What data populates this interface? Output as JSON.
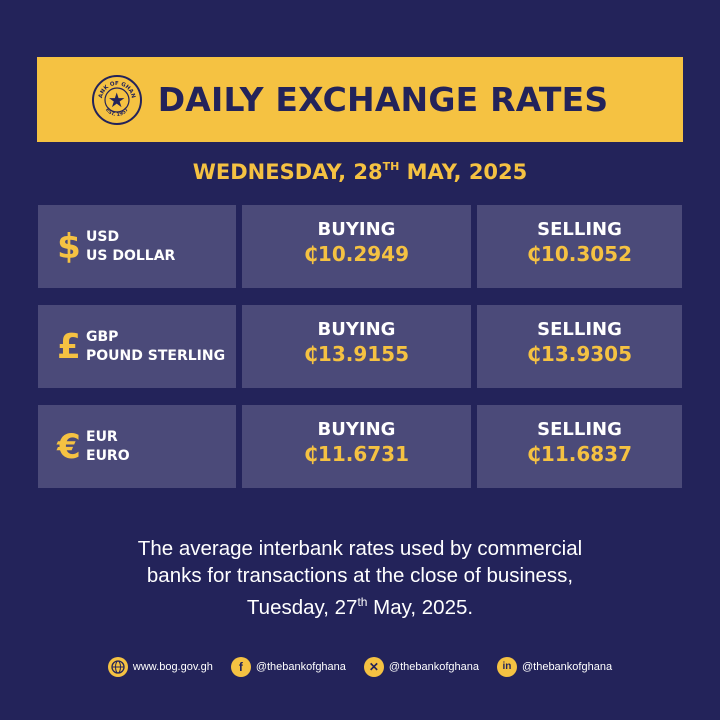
{
  "banner": {
    "title": "DAILY EXCHANGE RATES",
    "seal_text_top": "BANK OF GHANA",
    "seal_text_bottom": "EST. 1957"
  },
  "date": {
    "prefix": "WEDNESDAY, 28",
    "sup": "TH",
    "suffix": " MAY, 2025"
  },
  "rates": [
    {
      "symbol": "$",
      "code": "USD",
      "name": "US DOLLAR",
      "buying_label": "BUYING",
      "buying": "₵10.2949",
      "selling_label": "SELLING",
      "selling": "₵10.3052"
    },
    {
      "symbol": "£",
      "code": "GBP",
      "name": "POUND STERLING",
      "buying_label": "BUYING",
      "buying": "₵13.9155",
      "selling_label": "SELLING",
      "selling": "₵13.9305"
    },
    {
      "symbol": "€",
      "code": "EUR",
      "name": "EURO",
      "buying_label": "BUYING",
      "buying": "₵11.6731",
      "selling_label": "SELLING",
      "selling": "₵11.6837"
    }
  ],
  "note": {
    "line1": "The average interbank rates used by commercial",
    "line2": "banks for transactions at the close of business,",
    "line3_prefix": "Tuesday, 27",
    "line3_sup": "th",
    "line3_suffix": " May, 2025."
  },
  "footer": {
    "website": "www.bog.gov.gh",
    "facebook": "@thebankofghana",
    "x": "@thebankofghana",
    "linkedin": "@thebankofghana"
  },
  "colors": {
    "background": "#23235a",
    "accent": "#f5c242",
    "cell": "#4b4a79"
  }
}
